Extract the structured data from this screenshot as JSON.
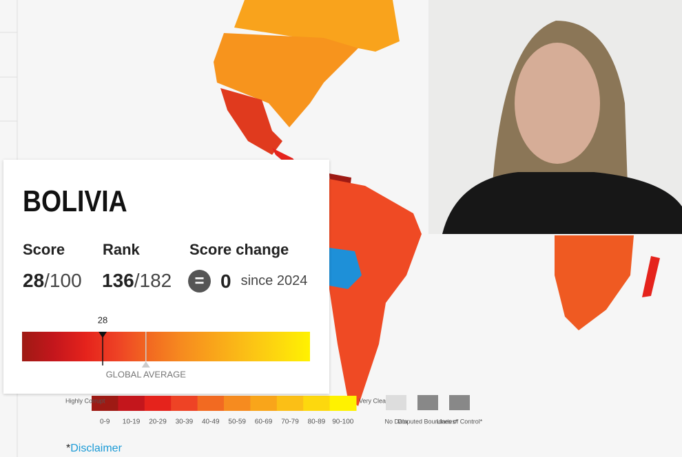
{
  "country_card": {
    "title": "BOLIVIA",
    "score_label": "Score",
    "score": 28,
    "score_suffix": "/100",
    "rank_label": "Rank",
    "rank": 136,
    "rank_suffix": "/182",
    "change_label": "Score change",
    "change_icon": "=",
    "change": 0,
    "change_since": "since 2024",
    "score_bar": {
      "range": [
        0,
        100
      ],
      "marker_label": "28",
      "marker": 28,
      "global_average": 43,
      "global_average_label": "GLOBAL AVERAGE"
    }
  },
  "legend": {
    "low_label": "Highly Corrupt",
    "high_label": "Very Clean",
    "bins": [
      "0-9",
      "10-19",
      "20-29",
      "30-39",
      "40-49",
      "50-59",
      "60-69",
      "70-79",
      "80-89",
      "90-100"
    ],
    "colors": [
      "#9e1a14",
      "#c4161c",
      "#e5231c",
      "#ee4325",
      "#f26a21",
      "#f68b1f",
      "#f9a51a",
      "#fbbf16",
      "#fdd80e",
      "#fff200"
    ],
    "extra": [
      "No Data",
      "Disputed Boundaries*",
      "Lines of Control*"
    ]
  },
  "disclaimer": {
    "star": "*",
    "text": "Disclaimer"
  }
}
